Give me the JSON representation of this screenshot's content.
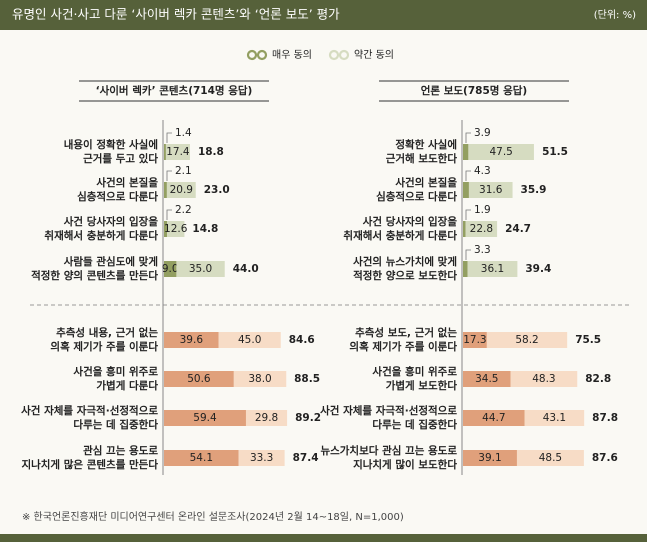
{
  "chart_data": {
    "type": "bar",
    "orientation": "horizontal",
    "stacked": true,
    "title": "유명인 사건·사고 다룬 ‘사이버 렉카 콘텐츠’와 ‘언론 보도’ 평가",
    "unit": "(단위: %)",
    "source": "※ 한국언론진흥재단 미디어연구센터 온라인 설문조사(2024년 2월 14~18일, N=1,000)",
    "series": [
      {
        "name": "매우 동의",
        "color": "#939f61"
      },
      {
        "name": "약간 동의",
        "color": "#d6dcc1"
      }
    ],
    "negative_colors": [
      "#e0a07b",
      "#f7dcc6"
    ],
    "panels": [
      {
        "title": "‘사이버 렉카’ 콘텐츠(714명 응답)",
        "items": [
          {
            "label": [
              "내용이 정확한 사실에",
              "근거를 두고 있다"
            ],
            "values": [
              1.4,
              17.4
            ],
            "value_labels": [
              "1.4",
              "17.4"
            ],
            "total": 18.8,
            "total_label": "18.8",
            "negative": false
          },
          {
            "label": [
              "사건의 본질을",
              "심층적으로 다룬다"
            ],
            "values": [
              2.1,
              20.9
            ],
            "value_labels": [
              "2.1",
              "20.9"
            ],
            "total": 23.0,
            "total_label": "23.0",
            "negative": false
          },
          {
            "label": [
              "사건 당사자의 입장을",
              "취재해서 충분하게 다룬다"
            ],
            "values": [
              2.2,
              12.6
            ],
            "value_labels": [
              "2.2",
              "12.6"
            ],
            "total": 14.8,
            "total_label": "14.8",
            "negative": false
          },
          {
            "label": [
              "사람들 관심도에 맞게",
              "적정한 양의 콘텐츠를 만든다"
            ],
            "values": [
              9.0,
              35.0
            ],
            "value_labels": [
              "9.0",
              "35.0"
            ],
            "total": 44.0,
            "total_label": "44.0",
            "negative": false
          },
          {
            "label": [
              "추측성 내용, 근거 없는",
              "의혹 제기가 주를 이룬다"
            ],
            "values": [
              39.6,
              45.0
            ],
            "value_labels": [
              "39.6",
              "45.0"
            ],
            "total": 84.6,
            "total_label": "84.6",
            "negative": true
          },
          {
            "label": [
              "사건을 흥미 위주로",
              "가볍게 다룬다"
            ],
            "values": [
              50.6,
              38.0
            ],
            "value_labels": [
              "50.6",
              "38.0"
            ],
            "total": 88.5,
            "total_label": "88.5",
            "negative": true
          },
          {
            "label": [
              "사건 자체를 자극적·선정적으로",
              "다루는 데 집중한다"
            ],
            "values": [
              59.4,
              29.8
            ],
            "value_labels": [
              "59.4",
              "29.8"
            ],
            "total": 89.2,
            "total_label": "89.2",
            "negative": true
          },
          {
            "label": [
              "관심 끄는 용도로",
              "지나치게 많은 콘텐츠를 만든다"
            ],
            "values": [
              54.1,
              33.3
            ],
            "value_labels": [
              "54.1",
              "33.3"
            ],
            "total": 87.4,
            "total_label": "87.4",
            "negative": true
          }
        ]
      },
      {
        "title": "언론 보도(785명 응답)",
        "items": [
          {
            "label": [
              "정확한 사실에",
              "근거해 보도한다"
            ],
            "values": [
              3.9,
              47.5
            ],
            "value_labels": [
              "3.9",
              "47.5"
            ],
            "total": 51.5,
            "total_label": "51.5",
            "negative": false
          },
          {
            "label": [
              "사건의 본질을",
              "심층적으로 다룬다"
            ],
            "values": [
              4.3,
              31.6
            ],
            "value_labels": [
              "4.3",
              "31.6"
            ],
            "total": 35.9,
            "total_label": "35.9",
            "negative": false
          },
          {
            "label": [
              "사건 당사자의 입장을",
              "취재해서 충분하게 다룬다"
            ],
            "values": [
              1.9,
              22.8
            ],
            "value_labels": [
              "1.9",
              "22.8"
            ],
            "total": 24.7,
            "total_label": "24.7",
            "negative": false
          },
          {
            "label": [
              "사건의 뉴스가치에 맞게",
              "적정한 양으로 보도한다"
            ],
            "values": [
              3.3,
              36.1
            ],
            "value_labels": [
              "3.3",
              "36.1"
            ],
            "total": 39.4,
            "total_label": "39.4",
            "negative": false
          },
          {
            "label": [
              "추측성 보도, 근거 없는",
              "의혹 제기가 주를 이룬다"
            ],
            "values": [
              17.3,
              58.2
            ],
            "value_labels": [
              "17.3",
              "58.2"
            ],
            "total": 75.5,
            "total_label": "75.5",
            "negative": true
          },
          {
            "label": [
              "사건을 흥미 위주로",
              "가볍게 보도한다"
            ],
            "values": [
              34.5,
              48.3
            ],
            "value_labels": [
              "34.5",
              "48.3"
            ],
            "total": 82.8,
            "total_label": "82.8",
            "negative": true
          },
          {
            "label": [
              "사건 자체를 자극적·선정적으로",
              "다루는 데 집중한다"
            ],
            "values": [
              44.7,
              43.1
            ],
            "value_labels": [
              "44.7",
              "43.1"
            ],
            "total": 87.8,
            "total_label": "87.8",
            "negative": true
          },
          {
            "label": [
              "뉴스가치보다 관심 끄는 용도로",
              "지나치게 많이 보도한다"
            ],
            "values": [
              39.1,
              48.5
            ],
            "value_labels": [
              "39.1",
              "48.5"
            ],
            "total": 87.6,
            "total_label": "87.6",
            "negative": true
          }
        ]
      }
    ]
  }
}
